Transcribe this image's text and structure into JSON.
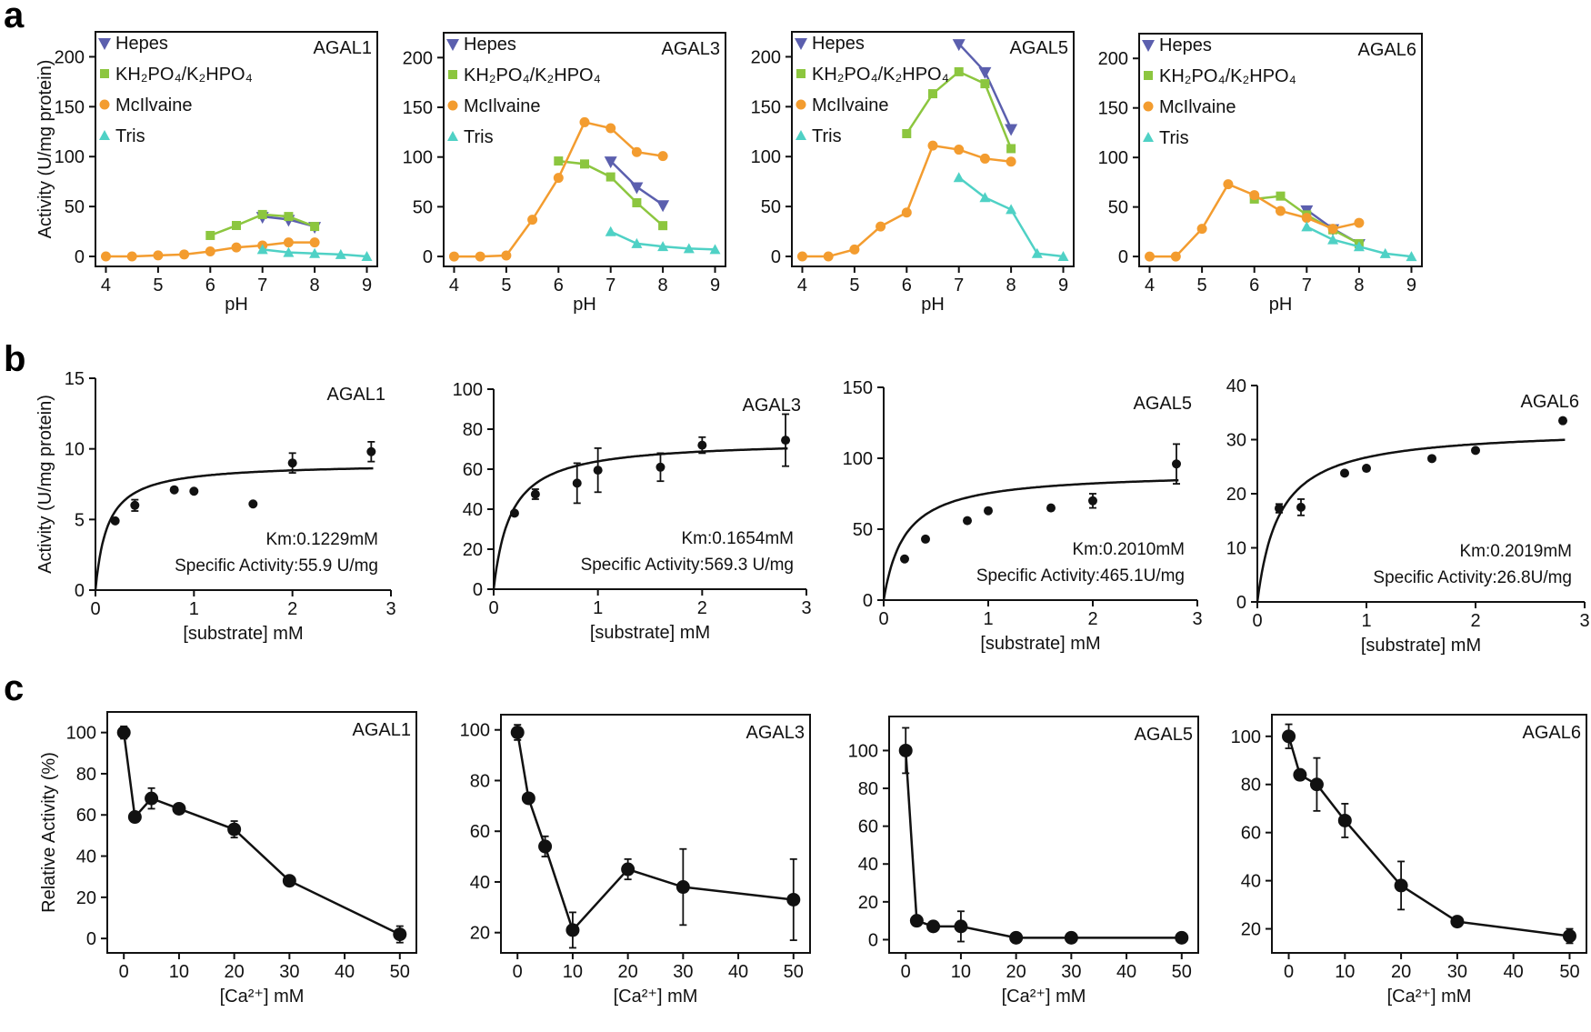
{
  "panel_letters": [
    "a",
    "b",
    "c"
  ],
  "chart_data": [
    {
      "panel": "a",
      "type": "line",
      "title": "AGAL1",
      "xlabel": "pH",
      "ylabel": "Activity (U/mg protein)",
      "xlim": [
        3.8,
        9.2
      ],
      "ylim": [
        -10,
        225
      ],
      "xticks": [
        4,
        5,
        6,
        7,
        8,
        9
      ],
      "yticks": [
        0,
        50,
        100,
        150,
        200
      ],
      "legend_position": "top-left",
      "box": true,
      "mode": "ph",
      "series": [
        {
          "name": "Hepes",
          "color": "#5b5fae",
          "marker": "tri-down",
          "x": [
            7,
            7.5,
            8
          ],
          "y": [
            40,
            37,
            30
          ]
        },
        {
          "name": "KH₂PO₄/K₂HPO₄",
          "color": "#8cc63f",
          "marker": "square",
          "x": [
            6,
            6.5,
            7,
            7.5,
            8
          ],
          "y": [
            21,
            31,
            42,
            40,
            30
          ]
        },
        {
          "name": "McIlvaine",
          "color": "#f39c2f",
          "marker": "circle",
          "x": [
            4,
            4.5,
            5,
            5.5,
            6,
            6.5,
            7,
            7.5,
            8
          ],
          "y": [
            0,
            0,
            1,
            2,
            5,
            9,
            11,
            14,
            14
          ]
        },
        {
          "name": "Tris",
          "color": "#4fd1c5",
          "marker": "tri-up",
          "x": [
            7,
            7.5,
            8,
            8.5,
            9
          ],
          "y": [
            7,
            4,
            3,
            2,
            0
          ]
        }
      ]
    },
    {
      "panel": "a",
      "type": "line",
      "title": "AGAL3",
      "xlabel": "pH",
      "ylabel": "",
      "xlim": [
        3.8,
        9.2
      ],
      "ylim": [
        -10,
        225
      ],
      "xticks": [
        4,
        5,
        6,
        7,
        8,
        9
      ],
      "yticks": [
        0,
        50,
        100,
        150,
        200
      ],
      "legend_position": "top-left",
      "box": true,
      "mode": "ph",
      "series": [
        {
          "name": "Hepes",
          "color": "#5b5fae",
          "marker": "tri-down",
          "x": [
            7,
            7.5,
            8
          ],
          "y": [
            96,
            70,
            52
          ]
        },
        {
          "name": "KH₂PO₄/K₂HPO₄",
          "color": "#8cc63f",
          "marker": "square",
          "x": [
            6,
            6.5,
            7,
            7.5,
            8
          ],
          "y": [
            96,
            93,
            80,
            54,
            31
          ]
        },
        {
          "name": "McIlvaine",
          "color": "#f39c2f",
          "marker": "circle",
          "x": [
            4,
            4.5,
            5,
            5.5,
            6,
            6.5,
            7,
            7.5,
            8
          ],
          "y": [
            0,
            0,
            1,
            37,
            79,
            135,
            129,
            105,
            101
          ]
        },
        {
          "name": "Tris",
          "color": "#4fd1c5",
          "marker": "tri-up",
          "x": [
            7,
            7.5,
            8,
            8.5,
            9
          ],
          "y": [
            25,
            13,
            10,
            8,
            7
          ]
        }
      ]
    },
    {
      "panel": "a",
      "type": "line",
      "title": "AGAL5",
      "xlabel": "pH",
      "ylabel": "",
      "xlim": [
        3.8,
        9.2
      ],
      "ylim": [
        -10,
        225
      ],
      "xticks": [
        4,
        5,
        6,
        7,
        8,
        9
      ],
      "yticks": [
        0,
        50,
        100,
        150,
        200
      ],
      "legend_position": "top-left",
      "box": true,
      "mode": "ph",
      "series": [
        {
          "name": "Hepes",
          "color": "#5b5fae",
          "marker": "tri-down",
          "x": [
            7,
            7.5,
            8
          ],
          "y": [
            213,
            185,
            128
          ]
        },
        {
          "name": "KH₂PO₄/K₂HPO₄",
          "color": "#8cc63f",
          "marker": "square",
          "x": [
            6,
            6.5,
            7,
            7.5,
            8
          ],
          "y": [
            123,
            163,
            185,
            173,
            108
          ]
        },
        {
          "name": "McIlvaine",
          "color": "#f39c2f",
          "marker": "circle",
          "x": [
            4,
            4.5,
            5,
            5.5,
            6,
            6.5,
            7,
            7.5,
            8
          ],
          "y": [
            0,
            0,
            7,
            30,
            44,
            111,
            107,
            98,
            95
          ]
        },
        {
          "name": "Tris",
          "color": "#4fd1c5",
          "marker": "tri-up",
          "x": [
            7,
            7.5,
            8,
            8.5,
            9
          ],
          "y": [
            79,
            59,
            47,
            3,
            0
          ]
        }
      ]
    },
    {
      "panel": "a",
      "type": "line",
      "title": "AGAL6",
      "xlabel": "pH",
      "ylabel": "",
      "xlim": [
        3.8,
        9.2
      ],
      "ylim": [
        -10,
        225
      ],
      "xticks": [
        4,
        5,
        6,
        7,
        8,
        9
      ],
      "yticks": [
        0,
        50,
        100,
        150,
        200
      ],
      "legend_position": "top-left",
      "box": true,
      "mode": "ph",
      "series": [
        {
          "name": "Hepes",
          "color": "#5b5fae",
          "marker": "tri-down",
          "x": [
            7,
            7.5,
            8
          ],
          "y": [
            47,
            28,
            13
          ]
        },
        {
          "name": "KH₂PO₄/K₂HPO₄",
          "color": "#8cc63f",
          "marker": "square",
          "x": [
            6,
            6.5,
            7,
            7.5,
            8
          ],
          "y": [
            58,
            61,
            42,
            27,
            13
          ]
        },
        {
          "name": "McIlvaine",
          "color": "#f39c2f",
          "marker": "circle",
          "x": [
            4,
            4.5,
            5,
            5.5,
            6,
            6.5,
            7,
            7.5,
            8
          ],
          "y": [
            0,
            0,
            28,
            73,
            62,
            46,
            39,
            28,
            34
          ]
        },
        {
          "name": "Tris",
          "color": "#4fd1c5",
          "marker": "tri-up",
          "x": [
            7,
            7.5,
            8,
            8.5,
            9
          ],
          "y": [
            30,
            17,
            10,
            3,
            0
          ]
        }
      ]
    },
    {
      "panel": "b",
      "type": "scatter",
      "title": "AGAL1",
      "xlabel": "[substrate] mM",
      "ylabel": "Activity (U/mg protein)",
      "xlim": [
        0,
        3
      ],
      "ylim": [
        0,
        15
      ],
      "xticks": [
        0,
        1,
        2,
        3
      ],
      "yticks": [
        0,
        5,
        10,
        15
      ],
      "box": false,
      "mode": "mm",
      "fit": {
        "vmax": 9.0,
        "km": 0.1229
      },
      "annotations": [
        "Km:0.1229mM",
        "Specific Activity:55.9 U/mg"
      ],
      "points": {
        "x": [
          0.2,
          0.4,
          0.8,
          1.0,
          1.6,
          2.0,
          2.8
        ],
        "y": [
          4.9,
          6.0,
          7.1,
          7.0,
          6.1,
          9.0,
          9.8
        ],
        "err": [
          0,
          0.4,
          0,
          0,
          0,
          0.7,
          0.7
        ]
      }
    },
    {
      "panel": "b",
      "type": "scatter",
      "title": "AGAL3",
      "xlabel": "[substrate] mM",
      "ylabel": "",
      "xlim": [
        0,
        3
      ],
      "ylim": [
        0,
        100
      ],
      "xticks": [
        0,
        1,
        2,
        3
      ],
      "yticks": [
        0,
        20,
        40,
        60,
        80,
        100
      ],
      "box": false,
      "mode": "mm",
      "fit": {
        "vmax": 74.5,
        "km": 0.1654
      },
      "annotations": [
        "Km:0.1654mM",
        "Specific Activity:569.3 U/mg"
      ],
      "points": {
        "x": [
          0.2,
          0.4,
          0.8,
          1.0,
          1.6,
          2.0,
          2.8
        ],
        "y": [
          38,
          47.5,
          53,
          59.5,
          61,
          72,
          74.5
        ],
        "err": [
          0,
          2.5,
          10,
          11,
          7,
          4,
          13
        ]
      }
    },
    {
      "panel": "b",
      "type": "scatter",
      "title": "AGAL5",
      "xlabel": "[substrate] mM",
      "ylabel": "",
      "xlim": [
        0,
        3
      ],
      "ylim": [
        0,
        150
      ],
      "xticks": [
        0,
        1,
        2,
        3
      ],
      "yticks": [
        0,
        50,
        100,
        150
      ],
      "box": false,
      "mode": "mm",
      "fit": {
        "vmax": 90.5,
        "km": 0.201
      },
      "annotations": [
        "Km:0.2010mM",
        "Specific Activity:465.1U/mg"
      ],
      "points": {
        "x": [
          0.2,
          0.4,
          0.8,
          1.0,
          1.6,
          2.0,
          2.8
        ],
        "y": [
          29,
          43,
          56,
          63,
          65,
          70,
          96
        ],
        "err": [
          0,
          0,
          0,
          0,
          0,
          5,
          14
        ]
      }
    },
    {
      "panel": "b",
      "type": "scatter",
      "title": "AGAL6",
      "xlabel": "[substrate] mM",
      "ylabel": "",
      "xlim": [
        0,
        3
      ],
      "ylim": [
        0,
        40
      ],
      "xticks": [
        0,
        1,
        2,
        3
      ],
      "yticks": [
        0,
        10,
        20,
        30,
        40
      ],
      "box": false,
      "mode": "mm",
      "fit": {
        "vmax": 32.1,
        "km": 0.2019
      },
      "annotations": [
        "Km:0.2019mM",
        "Specific Activity:26.8U/mg"
      ],
      "points": {
        "x": [
          0.2,
          0.4,
          0.8,
          1.0,
          1.6,
          2.0,
          2.8
        ],
        "y": [
          17.3,
          17.5,
          23.8,
          24.7,
          26.5,
          28.0,
          33.5
        ],
        "err": [
          0.8,
          1.5,
          0,
          0,
          0,
          0,
          0
        ]
      }
    },
    {
      "panel": "c",
      "type": "line",
      "title": "AGAL1",
      "xlabel": "[Ca²⁺] mM",
      "ylabel": "Relative Activity (%)",
      "xlim": [
        -3,
        53
      ],
      "ylim": [
        -7,
        110
      ],
      "xticks": [
        0,
        10,
        20,
        30,
        40,
        50
      ],
      "yticks": [
        0,
        20,
        40,
        60,
        80,
        100
      ],
      "box": true,
      "mode": "ca",
      "points": {
        "x": [
          0,
          2,
          5,
          10,
          20,
          30,
          50
        ],
        "y": [
          100,
          59,
          68,
          63,
          53,
          28,
          2
        ],
        "err": [
          3,
          0,
          5,
          0,
          4,
          0,
          4
        ]
      }
    },
    {
      "panel": "c",
      "type": "line",
      "title": "AGAL3",
      "xlabel": "[Ca²⁺] mM",
      "ylabel": "",
      "xlim": [
        -3,
        53
      ],
      "ylim": [
        12,
        106
      ],
      "xticks": [
        0,
        10,
        20,
        30,
        40,
        50
      ],
      "yticks": [
        20,
        40,
        60,
        80,
        100
      ],
      "box": true,
      "mode": "ca",
      "points": {
        "x": [
          0,
          2,
          5,
          10,
          20,
          30,
          50
        ],
        "y": [
          99,
          73,
          54,
          21,
          45,
          38,
          33
        ],
        "err": [
          3,
          0,
          4,
          7,
          4,
          15,
          16
        ]
      }
    },
    {
      "panel": "c",
      "type": "line",
      "title": "AGAL5",
      "xlabel": "[Ca²⁺] mM",
      "ylabel": "",
      "xlim": [
        -3,
        53
      ],
      "ylim": [
        -7,
        118
      ],
      "xticks": [
        0,
        10,
        20,
        30,
        40,
        50
      ],
      "yticks": [
        0,
        20,
        40,
        60,
        80,
        100
      ],
      "box": true,
      "mode": "ca",
      "points": {
        "x": [
          0,
          2,
          5,
          10,
          20,
          30,
          50
        ],
        "y": [
          100,
          10,
          7,
          7,
          1,
          1,
          1
        ],
        "err": [
          12,
          0,
          0,
          8,
          0,
          0,
          0
        ]
      }
    },
    {
      "panel": "c",
      "type": "line",
      "title": "AGAL6",
      "xlabel": "[Ca²⁺] mM",
      "ylabel": "",
      "xlim": [
        -3,
        53
      ],
      "ylim": [
        10,
        109
      ],
      "xticks": [
        0,
        10,
        20,
        30,
        40,
        50
      ],
      "yticks": [
        20,
        40,
        60,
        80,
        100
      ],
      "box": true,
      "mode": "ca",
      "points": {
        "x": [
          0,
          2,
          5,
          10,
          20,
          30,
          50
        ],
        "y": [
          100,
          84,
          80,
          65,
          38,
          23,
          17
        ],
        "err": [
          5,
          0,
          11,
          7,
          10,
          0,
          3
        ]
      }
    }
  ]
}
